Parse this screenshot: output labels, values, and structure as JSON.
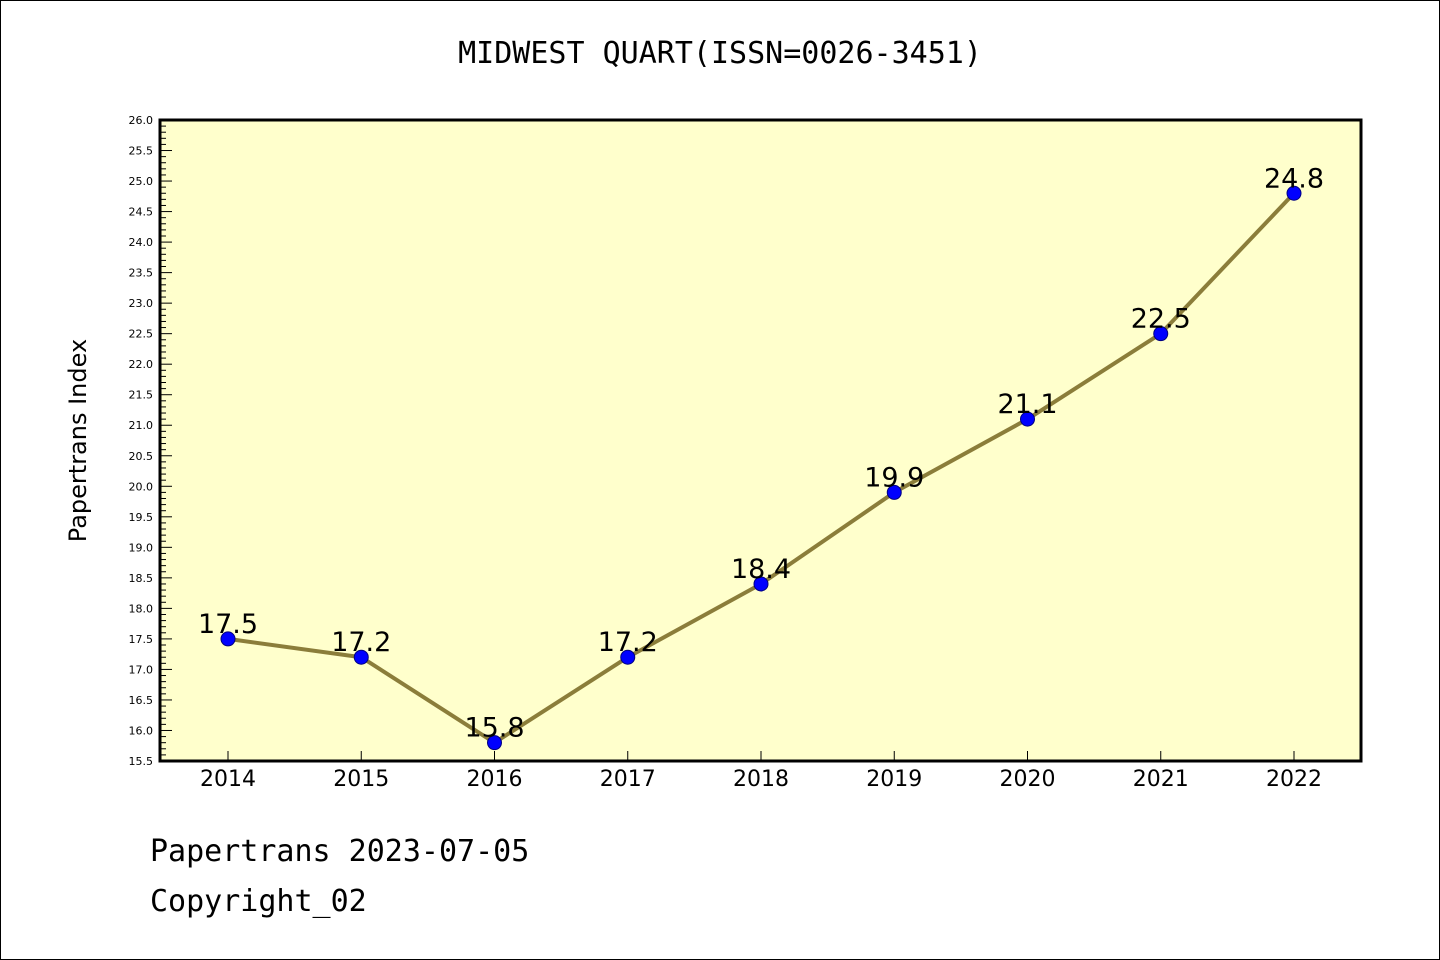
{
  "title": "MIDWEST QUART(ISSN=0026-3451)",
  "footer": {
    "line1": "Papertrans 2023-07-05",
    "line2": "Copyright_02"
  },
  "chart_data": {
    "type": "line",
    "title": "MIDWEST QUART(ISSN=0026-3451)",
    "xlabel": "",
    "ylabel": "Papertrans Index",
    "categories": [
      "2014",
      "2015",
      "2016",
      "2017",
      "2018",
      "2019",
      "2020",
      "2021",
      "2022"
    ],
    "values": [
      17.5,
      17.2,
      15.8,
      17.2,
      18.4,
      19.9,
      21.1,
      22.5,
      24.8
    ],
    "data_labels": [
      "17.5",
      "17.2",
      "15.8",
      "17.2",
      "18.4",
      "19.9",
      "21.1",
      "22.5",
      "24.8"
    ],
    "ylim": [
      15.5,
      26.0
    ],
    "ytick_step": 0.5,
    "grid": false,
    "colors": {
      "plot_background": "#ffffcc",
      "line": "#8b7d3a",
      "marker_fill": "#0000ff",
      "marker_stroke": "#000080"
    }
  }
}
